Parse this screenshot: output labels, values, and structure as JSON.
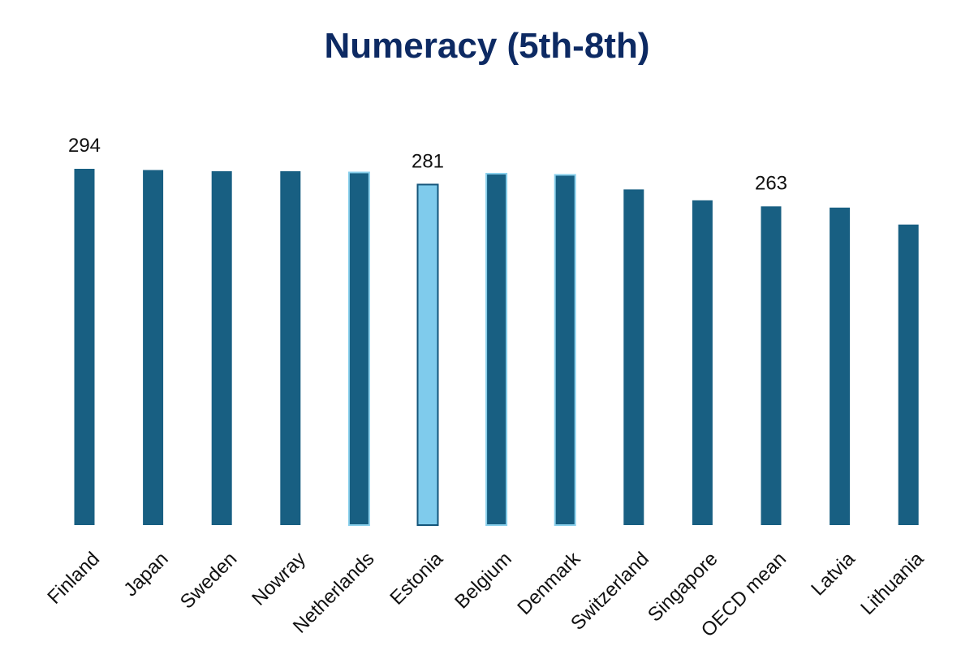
{
  "chart_data": {
    "type": "bar",
    "title": "Numeracy (5th-8th)",
    "xlabel": "",
    "ylabel": "",
    "categories": [
      "Finland",
      "Japan",
      "Sweden",
      "Nowray",
      "Netherlands",
      "Estonia",
      "Belgium",
      "Denmark",
      "Switzerland",
      "Singapore",
      "OECD mean",
      "Latvia",
      "Lithuania"
    ],
    "values": [
      294,
      293,
      292,
      292,
      291,
      281,
      290,
      289,
      277,
      268,
      263,
      262,
      248
    ],
    "value_labels": [
      "294",
      "",
      "",
      "",
      "",
      "281",
      "",
      "",
      "",
      "",
      "263",
      "",
      ""
    ],
    "bar_styles": [
      "dark",
      "dark",
      "dark",
      "dark",
      "outlined",
      "highlight",
      "outlined",
      "outlined",
      "dark",
      "dark",
      "dark",
      "dark",
      "dark"
    ],
    "colors": {
      "dark": "#185f82",
      "outline": "#8ad0ec",
      "highlight_fill": "#7fcbec",
      "highlight_border": "#14557a",
      "title": "#0d2a63"
    },
    "ylim": [
      0,
      294
    ],
    "grid": false,
    "legend": "none"
  }
}
